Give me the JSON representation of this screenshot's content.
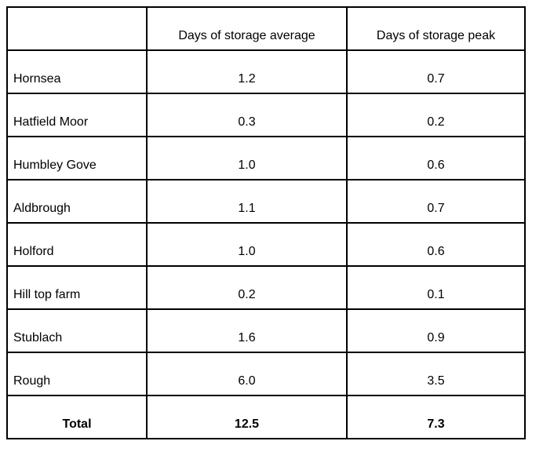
{
  "table": {
    "columns": [
      "",
      "Days of storage average",
      "Days of storage peak"
    ],
    "rows": [
      {
        "label": "Hornsea",
        "average": "1.2",
        "peak": "0.7"
      },
      {
        "label": "Hatfield Moor",
        "average": "0.3",
        "peak": "0.2"
      },
      {
        "label": "Humbley Gove",
        "average": "1.0",
        "peak": "0.6"
      },
      {
        "label": "Aldbrough",
        "average": "1.1",
        "peak": "0.7"
      },
      {
        "label": "Holford",
        "average": "1.0",
        "peak": "0.6"
      },
      {
        "label": "Hill top farm",
        "average": "0.2",
        "peak": "0.1"
      },
      {
        "label": "Stublach",
        "average": "1.6",
        "peak": "0.9"
      },
      {
        "label": "Rough",
        "average": "6.0",
        "peak": "3.5"
      }
    ],
    "total": {
      "label": "Total",
      "average": "12.5",
      "peak": "7.3"
    }
  },
  "chart_data": {
    "type": "table",
    "title": "",
    "columns": [
      "",
      "Days of storage average",
      "Days of storage peak"
    ],
    "rows": [
      [
        "Hornsea",
        1.2,
        0.7
      ],
      [
        "Hatfield Moor",
        0.3,
        0.2
      ],
      [
        "Humbley Gove",
        1.0,
        0.6
      ],
      [
        "Aldbrough",
        1.1,
        0.7
      ],
      [
        "Holford",
        1.0,
        0.6
      ],
      [
        "Hill top farm",
        0.2,
        0.1
      ],
      [
        "Stublach",
        1.6,
        0.9
      ],
      [
        "Rough",
        6.0,
        3.5
      ],
      [
        "Total",
        12.5,
        7.3
      ]
    ],
    "layout": {
      "grid": "all-borders",
      "header_weight": "normal",
      "total_row_bold": true
    }
  },
  "colors": {
    "border": "#000000",
    "text": "#000000",
    "background": "#ffffff"
  }
}
